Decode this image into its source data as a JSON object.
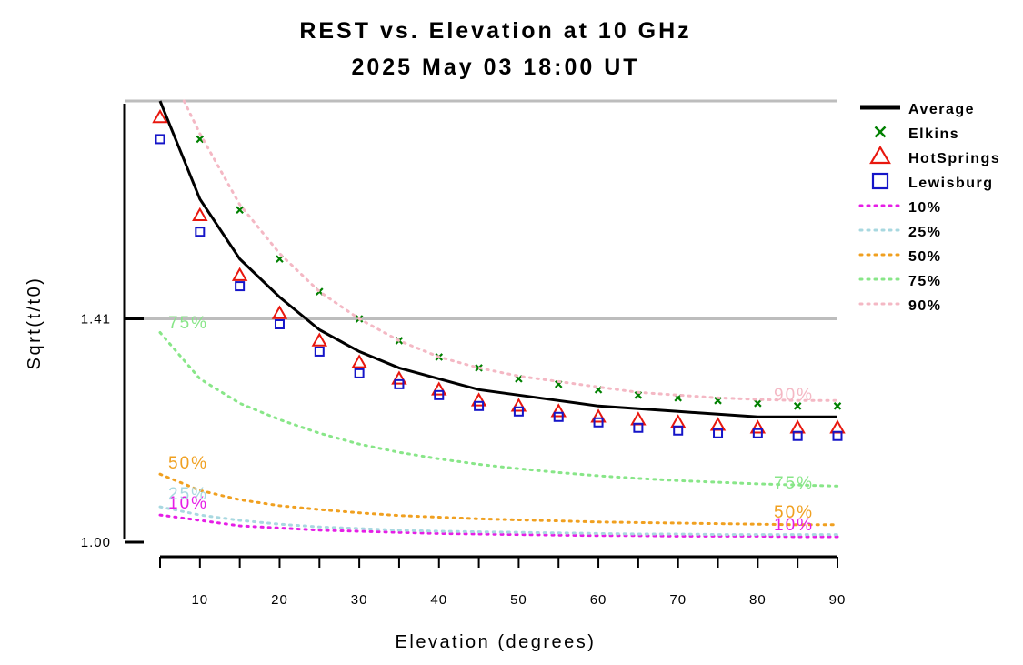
{
  "chart_data": {
    "type": "line",
    "title": "REST vs. Elevation at 10 GHz",
    "subtitle": "2025 May 03 18:00 UT",
    "xlabel": "Elevation (degrees)",
    "ylabel": "Sqrt(t/t0)",
    "xlim": [
      5,
      90
    ],
    "ylim": [
      1.0,
      1.81
    ],
    "x_ticks": [
      10,
      20,
      30,
      40,
      50,
      60,
      70,
      80,
      90
    ],
    "x_tick_labels": [
      "10",
      "20",
      "30",
      "40",
      "50",
      "60",
      "70",
      "80",
      "90"
    ],
    "y_ticks": [
      1.0,
      1.41
    ],
    "y_tick_labels": [
      "1.00",
      "1.41"
    ],
    "reference_lines": [
      1.41,
      1.81
    ],
    "legend_position": "right",
    "series": [
      {
        "name": "Average",
        "style": "line",
        "color": "#000000",
        "x": [
          5,
          10,
          15,
          20,
          25,
          30,
          35,
          40,
          45,
          50,
          55,
          60,
          65,
          70,
          75,
          80,
          85,
          90
        ],
        "y": [
          1.81,
          1.63,
          1.52,
          1.45,
          1.39,
          1.35,
          1.32,
          1.3,
          1.28,
          1.27,
          1.26,
          1.25,
          1.245,
          1.24,
          1.235,
          1.23,
          1.23,
          1.23
        ]
      },
      {
        "name": "Elkins",
        "style": "marker-x",
        "color": "#008000",
        "x": [
          10,
          15,
          20,
          25,
          30,
          35,
          40,
          45,
          50,
          55,
          60,
          65,
          70,
          75,
          80,
          85,
          90
        ],
        "y": [
          1.74,
          1.61,
          1.52,
          1.46,
          1.41,
          1.37,
          1.34,
          1.32,
          1.3,
          1.29,
          1.28,
          1.27,
          1.265,
          1.26,
          1.255,
          1.25,
          1.25
        ]
      },
      {
        "name": "HotSprings",
        "style": "marker-triangle",
        "color": "#e8170e",
        "x": [
          5,
          10,
          15,
          20,
          25,
          30,
          35,
          40,
          45,
          50,
          55,
          60,
          65,
          70,
          75,
          80,
          85,
          90
        ],
        "y": [
          1.78,
          1.6,
          1.49,
          1.42,
          1.37,
          1.33,
          1.3,
          1.28,
          1.26,
          1.25,
          1.24,
          1.23,
          1.225,
          1.22,
          1.215,
          1.21,
          1.21,
          1.21
        ]
      },
      {
        "name": "Lewisburg",
        "style": "marker-square",
        "color": "#1515c8",
        "x": [
          5,
          10,
          15,
          20,
          25,
          30,
          35,
          40,
          45,
          50,
          55,
          60,
          65,
          70,
          75,
          80,
          85,
          90
        ],
        "y": [
          1.74,
          1.57,
          1.47,
          1.4,
          1.35,
          1.31,
          1.29,
          1.27,
          1.25,
          1.24,
          1.23,
          1.22,
          1.21,
          1.205,
          1.2,
          1.2,
          1.195,
          1.195
        ]
      },
      {
        "name": "10%",
        "style": "dotted",
        "color": "#e61ee6",
        "label_start": "10%",
        "label_end": "10%",
        "x": [
          5,
          10,
          15,
          20,
          25,
          30,
          35,
          40,
          45,
          50,
          55,
          60,
          65,
          70,
          75,
          80,
          85,
          90
        ],
        "y": [
          1.05,
          1.04,
          1.03,
          1.026,
          1.022,
          1.02,
          1.018,
          1.016,
          1.015,
          1.014,
          1.013,
          1.012,
          1.012,
          1.011,
          1.011,
          1.011,
          1.01,
          1.01
        ]
      },
      {
        "name": "25%",
        "style": "dotted",
        "color": "#a8d8e0",
        "label_start": "25%",
        "label_end": "",
        "x": [
          5,
          10,
          15,
          20,
          25,
          30,
          35,
          40,
          45,
          50,
          55,
          60,
          65,
          70,
          75,
          80,
          85,
          90
        ],
        "y": [
          1.065,
          1.05,
          1.04,
          1.033,
          1.028,
          1.025,
          1.022,
          1.02,
          1.019,
          1.018,
          1.017,
          1.016,
          1.015,
          1.015,
          1.014,
          1.014,
          1.014,
          1.014
        ]
      },
      {
        "name": "50%",
        "style": "dotted",
        "color": "#f0a020",
        "label_start": "50%",
        "label_end": "50%",
        "x": [
          5,
          10,
          15,
          20,
          25,
          30,
          35,
          40,
          45,
          50,
          55,
          60,
          65,
          70,
          75,
          80,
          85,
          90
        ],
        "y": [
          1.125,
          1.095,
          1.078,
          1.067,
          1.06,
          1.054,
          1.049,
          1.046,
          1.043,
          1.041,
          1.039,
          1.037,
          1.036,
          1.035,
          1.034,
          1.033,
          1.032,
          1.032
        ]
      },
      {
        "name": "75%",
        "style": "dotted",
        "color": "#88e688",
        "label_start": "75%",
        "label_end": "75%",
        "x": [
          5,
          10,
          15,
          20,
          25,
          30,
          35,
          40,
          45,
          50,
          55,
          60,
          65,
          70,
          75,
          80,
          85,
          90
        ],
        "y": [
          1.385,
          1.3,
          1.255,
          1.225,
          1.2,
          1.18,
          1.165,
          1.153,
          1.143,
          1.135,
          1.128,
          1.122,
          1.117,
          1.113,
          1.11,
          1.107,
          1.105,
          1.103
        ]
      },
      {
        "name": "90%",
        "style": "dotted",
        "color": "#f4b8c4",
        "label_start": "",
        "label_end": "90%",
        "x": [
          8,
          10,
          15,
          20,
          25,
          30,
          35,
          40,
          45,
          50,
          55,
          60,
          65,
          70,
          75,
          80,
          85,
          90
        ],
        "y": [
          1.82,
          1.75,
          1.62,
          1.53,
          1.46,
          1.41,
          1.37,
          1.34,
          1.32,
          1.305,
          1.295,
          1.285,
          1.275,
          1.27,
          1.265,
          1.262,
          1.26,
          1.26
        ]
      }
    ]
  }
}
